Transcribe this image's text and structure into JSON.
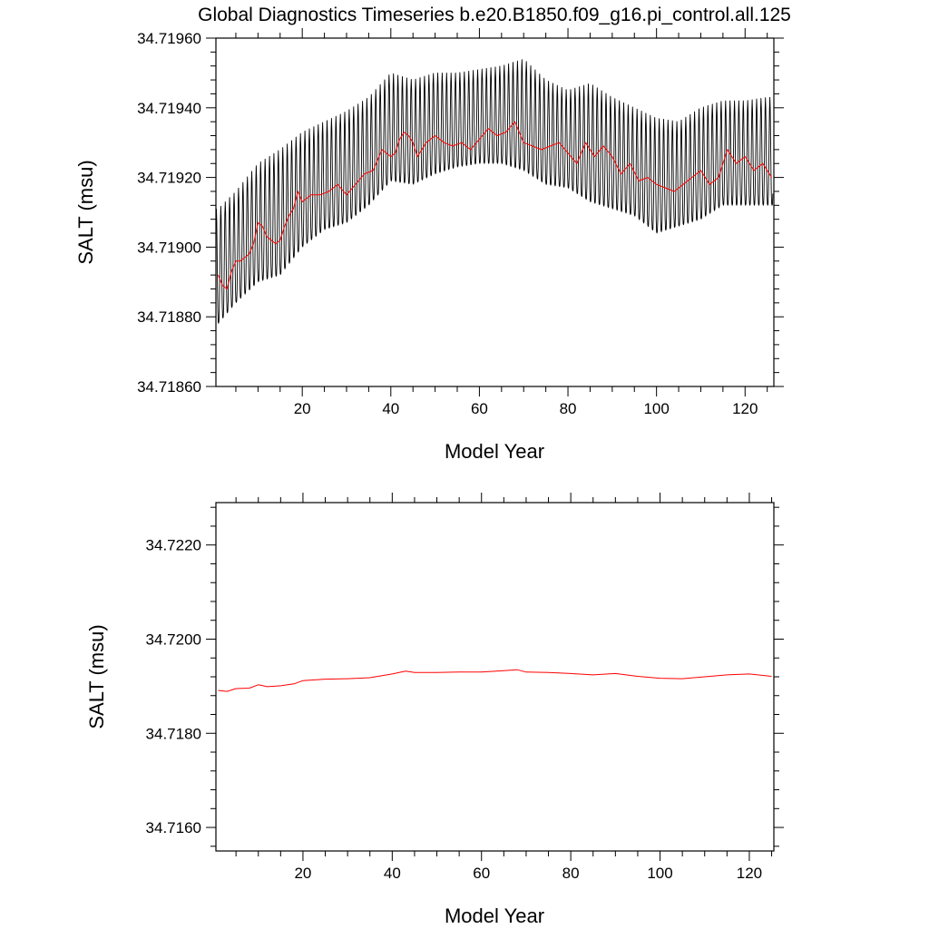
{
  "figure_title": "Global Diagnostics Timeseries b.e20.B1850.f09_g16.pi_control.all.125",
  "colors": {
    "monthly": "#000000",
    "annual": "#ff0000",
    "axes": "#000000",
    "background": "#ffffff"
  },
  "chart_data": [
    {
      "type": "line",
      "title": "Global Diagnostics Timeseries b.e20.B1850.f09_g16.pi_control.all.125",
      "xlabel": "Model Year",
      "ylabel": "SALT (msu)",
      "xlim": [
        0.5,
        126.5
      ],
      "ylim": [
        34.7186,
        34.7196
      ],
      "xticks": [
        20,
        40,
        60,
        80,
        100,
        120
      ],
      "xtick_labels": [
        "20",
        "40",
        "60",
        "80",
        "100",
        "120"
      ],
      "yticks": [
        34.7186,
        34.7188,
        34.719,
        34.7192,
        34.7194,
        34.7196
      ],
      "ytick_labels": [
        "34.71860",
        "34.71880",
        "34.71900",
        "34.71920",
        "34.71940",
        "34.71960"
      ],
      "grid": false,
      "series": [
        {
          "color": "#000000",
          "description": "monthly values; envelope read per model year",
          "years": [
            1,
            5,
            10,
            15,
            20,
            25,
            30,
            35,
            40,
            45,
            50,
            55,
            60,
            65,
            70,
            75,
            80,
            85,
            90,
            95,
            100,
            105,
            110,
            115,
            120,
            125
          ],
          "max": [
            34.71911,
            34.71916,
            34.71924,
            34.71928,
            34.71933,
            34.71936,
            34.71939,
            34.71943,
            34.7195,
            34.71948,
            34.7195,
            34.7195,
            34.71951,
            34.71952,
            34.71954,
            34.71948,
            34.71945,
            34.71947,
            34.71943,
            34.7194,
            34.71937,
            34.71936,
            34.7194,
            34.71942,
            34.71942,
            34.71943
          ],
          "min": [
            34.71878,
            34.71884,
            34.7189,
            34.71892,
            34.719,
            34.71905,
            34.71907,
            34.71912,
            34.71919,
            34.71918,
            34.71921,
            34.71923,
            34.71924,
            34.71924,
            34.71922,
            34.71918,
            34.71917,
            34.71913,
            34.71911,
            34.71909,
            34.71904,
            34.71906,
            34.71908,
            34.71912,
            34.71912,
            34.71912
          ]
        },
        {
          "color": "#ff0000",
          "description": "annual mean",
          "x": [
            1,
            2,
            3,
            4,
            5,
            6,
            7,
            8,
            9,
            10,
            11,
            12,
            13,
            14,
            15,
            16,
            17,
            18,
            19,
            20,
            22,
            24,
            26,
            28,
            30,
            32,
            34,
            36,
            38,
            40,
            41,
            42,
            43,
            44,
            45,
            46,
            48,
            50,
            52,
            54,
            56,
            58,
            60,
            62,
            64,
            66,
            68,
            70,
            72,
            74,
            76,
            78,
            80,
            82,
            84,
            86,
            88,
            90,
            92,
            94,
            96,
            98,
            100,
            102,
            104,
            106,
            108,
            110,
            112,
            114,
            116,
            118,
            120,
            122,
            124,
            126
          ],
          "y": [
            34.71892,
            34.71889,
            34.71888,
            34.71893,
            34.71896,
            34.71896,
            34.71897,
            34.71898,
            34.71901,
            34.71907,
            34.71906,
            34.71903,
            34.71902,
            34.71901,
            34.71902,
            34.71906,
            34.71909,
            34.71911,
            34.71916,
            34.71913,
            34.71915,
            34.71915,
            34.71916,
            34.71918,
            34.71915,
            34.71918,
            34.71921,
            34.71922,
            34.71928,
            34.71926,
            34.71927,
            34.71931,
            34.71933,
            34.71932,
            34.7193,
            34.71926,
            34.7193,
            34.71932,
            34.7193,
            34.71929,
            34.7193,
            34.71928,
            34.71931,
            34.71934,
            34.71932,
            34.71933,
            34.71936,
            34.7193,
            34.71929,
            34.71928,
            34.71929,
            34.7193,
            34.71927,
            34.71924,
            34.7193,
            34.71926,
            34.71929,
            34.71926,
            34.71921,
            34.71924,
            34.71919,
            34.7192,
            34.71918,
            34.71917,
            34.71916,
            34.71918,
            34.7192,
            34.71922,
            34.71918,
            34.7192,
            34.71928,
            34.71924,
            34.71926,
            34.71922,
            34.71924,
            34.7192
          ]
        }
      ]
    },
    {
      "type": "line",
      "title": "",
      "xlabel": "Model Year",
      "ylabel": "SALT (msu)",
      "xlim": [
        0.5,
        125.5
      ],
      "ylim": [
        34.7155,
        34.7229
      ],
      "xticks": [
        20,
        40,
        60,
        80,
        100,
        120
      ],
      "xtick_labels": [
        "20",
        "40",
        "60",
        "80",
        "100",
        "120"
      ],
      "yticks": [
        34.716,
        34.718,
        34.72,
        34.722
      ],
      "ytick_labels": [
        "34.7160",
        "34.7180",
        "34.7200",
        "34.7220"
      ],
      "grid": false,
      "series": [
        {
          "color": "#ff0000",
          "description": "annual mean",
          "x": [
            1,
            3,
            5,
            8,
            10,
            12,
            15,
            18,
            20,
            25,
            30,
            35,
            40,
            43,
            45,
            50,
            55,
            60,
            65,
            68,
            70,
            75,
            80,
            85,
            90,
            95,
            100,
            105,
            110,
            115,
            120,
            125
          ],
          "y": [
            34.71891,
            34.71889,
            34.71895,
            34.71896,
            34.71903,
            34.71899,
            34.71901,
            34.71905,
            34.71912,
            34.71915,
            34.71916,
            34.71918,
            34.71926,
            34.71932,
            34.71929,
            34.71929,
            34.7193,
            34.7193,
            34.71933,
            34.71935,
            34.7193,
            34.71929,
            34.71927,
            34.71924,
            34.71927,
            34.71921,
            34.71917,
            34.71916,
            34.7192,
            34.71924,
            34.71926,
            34.71921
          ]
        }
      ]
    }
  ]
}
